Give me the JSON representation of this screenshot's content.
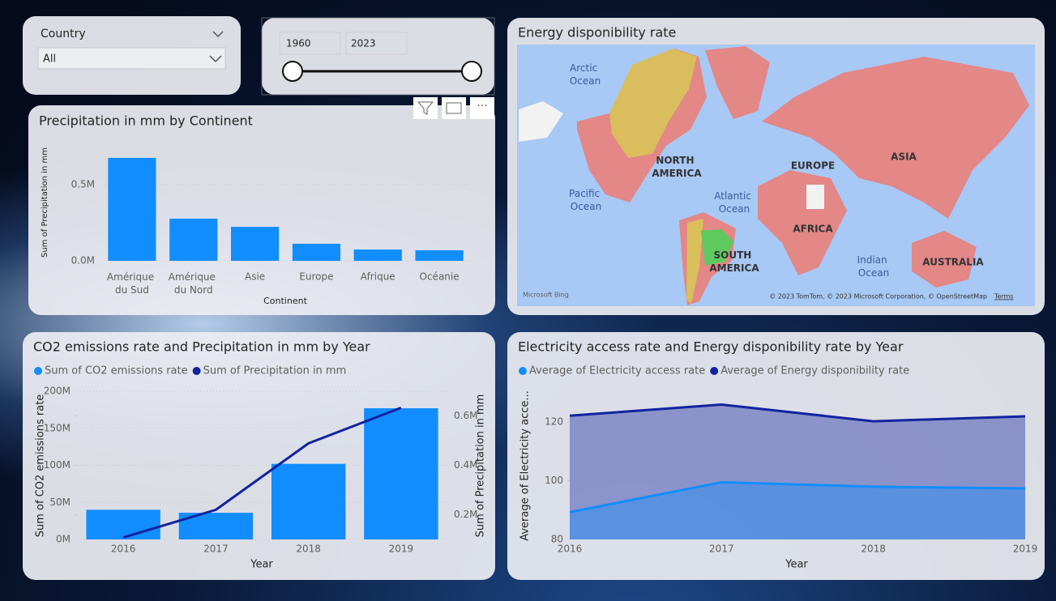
{
  "slicers": {
    "country": {
      "label": "Country",
      "selected": "All"
    },
    "year": {
      "start": "1960",
      "end": "2023"
    }
  },
  "map": {
    "title": "Energy disponibility rate",
    "labels": [
      "Arctic Ocean",
      "NORTH AMERICA",
      "EUROPE",
      "ASIA",
      "Pacific Ocean",
      "Atlantic Ocean",
      "AFRICA",
      "SOUTH AMERICA",
      "Indian Ocean",
      "AUSTRALIA"
    ],
    "attribution": "© 2023 TomTom, © 2023 Microsoft Corporation, © OpenStreetMap",
    "terms": "Terms",
    "provider": "Microsoft Bing"
  },
  "chart_data": [
    {
      "type": "bar",
      "title": "Precipitation in mm by Continent",
      "x_label": "Continent",
      "y_label": "Sum of Precipitation in mm",
      "categories": [
        "Amérique du Sud",
        "Amérique du Nord",
        "Asie",
        "Europe",
        "Afrique",
        "Océanie"
      ],
      "values": [
        676000,
        277000,
        223000,
        112000,
        74000,
        69000
      ],
      "color": "#118dff",
      "ylim": [
        0,
        750000
      ],
      "yticks": [
        {
          "value": 0,
          "label": "0.0M"
        },
        {
          "value": 500000,
          "label": "0.5M"
        }
      ],
      "grid": true
    },
    {
      "type": "combo",
      "title": "CO2 emissions rate and Precipitation in mm by Year",
      "x_label": "Year",
      "y_label": "Sum of CO2 emissions rate",
      "y2_label": "Sum of Precipitation in mm",
      "categories": [
        "2016",
        "2017",
        "2018",
        "2019"
      ],
      "series": [
        {
          "name": "Sum of CO2 emissions rate",
          "type": "bar",
          "color": "#118dff",
          "values": [
            40000000,
            36000000,
            102000000,
            177000000
          ]
        },
        {
          "name": "Sum of Precipitation in mm",
          "type": "line",
          "axis": "y2",
          "color": "#12239e",
          "values": [
            108000,
            220000,
            489000,
            633000
          ]
        }
      ],
      "ylim": [
        0,
        200000000
      ],
      "yticks": [
        {
          "value": 0,
          "label": "0M"
        },
        {
          "value": 50000000,
          "label": "50M"
        },
        {
          "value": 100000000,
          "label": "100M"
        },
        {
          "value": 150000000,
          "label": "150M"
        },
        {
          "value": 200000000,
          "label": "200M"
        }
      ],
      "y2lim": [
        100000,
        700000
      ],
      "y2ticks": [
        {
          "value": 200000,
          "label": "0.2M"
        },
        {
          "value": 400000,
          "label": "0.4M"
        },
        {
          "value": 600000,
          "label": "0.6M"
        }
      ],
      "grid": true
    },
    {
      "type": "area",
      "title": "Electricity access rate and Energy disponibility rate by Year",
      "x_label": "Year",
      "y_label": "Average of Electricity acce...",
      "categories": [
        "2016",
        "2017",
        "2018",
        "2019"
      ],
      "series": [
        {
          "name": "Average of Electricity access rate",
          "color": "#118dff",
          "values": [
            89.3,
            99.5,
            98.0,
            97.4
          ]
        },
        {
          "name": "Average of Energy disponibility rate",
          "color": "#12239e",
          "values": [
            122.2,
            126.0,
            120.3,
            122.0
          ]
        }
      ],
      "ylim": [
        80,
        130
      ],
      "yticks": [
        80,
        100,
        120
      ],
      "grid": false
    }
  ]
}
